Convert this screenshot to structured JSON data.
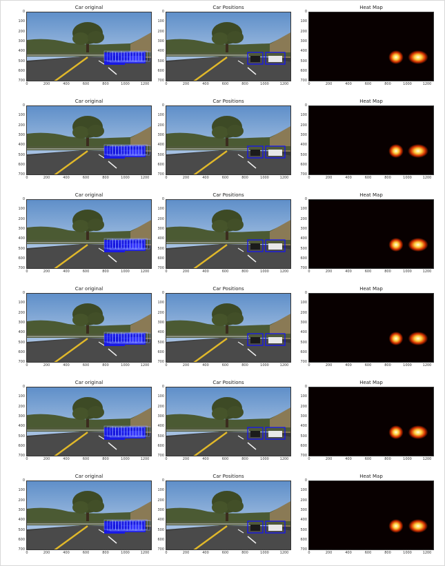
{
  "panel_titles": [
    "Car original",
    "Car Positions",
    "Heat Map"
  ],
  "y_ticks": [
    "0",
    "100",
    "200",
    "300",
    "400",
    "500",
    "600",
    "700"
  ],
  "x_ticks": [
    "0",
    "200",
    "400",
    "600",
    "800",
    "1000",
    "1200"
  ],
  "colors": {
    "sky_top": "#5f8fc9",
    "sky_bottom": "#c7d9ee",
    "road": "#3a3a3a",
    "box": "#1010ff",
    "heat_background": "#080000"
  },
  "rows": [
    {
      "heat_left": 0.88,
      "heat_right": 0.9
    },
    {
      "heat_left": 0.88,
      "heat_right": 0.92
    },
    {
      "heat_left": 0.86,
      "heat_right": 0.9
    },
    {
      "heat_left": 0.84,
      "heat_right": 0.88
    },
    {
      "heat_left": 0.86,
      "heat_right": 0.88
    },
    {
      "heat_left": 0.86,
      "heat_right": 0.86
    }
  ]
}
